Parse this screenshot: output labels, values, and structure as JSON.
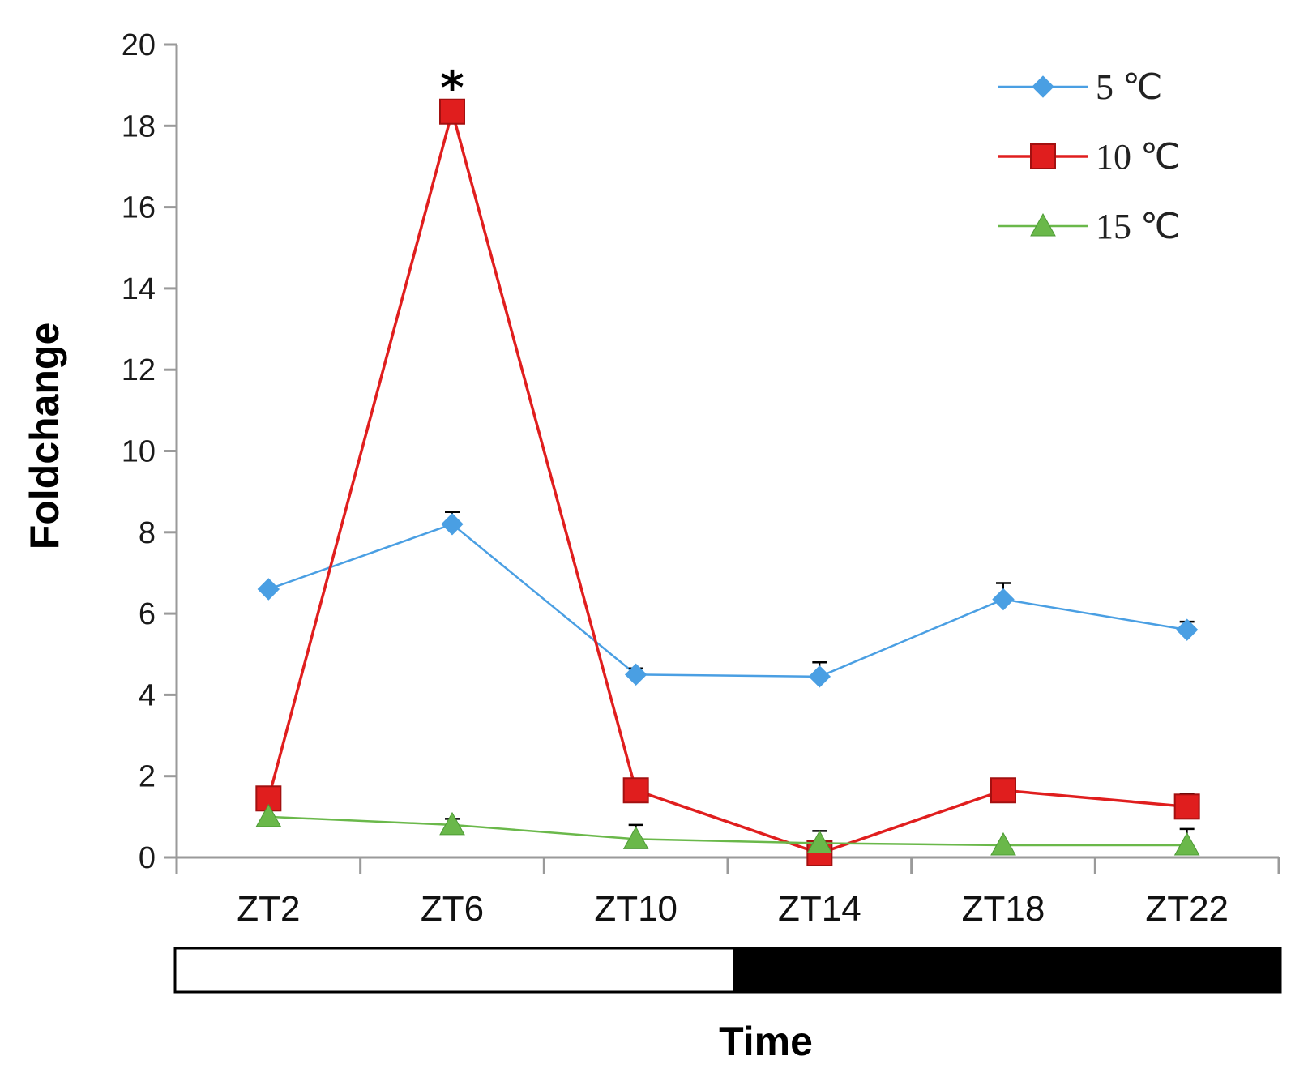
{
  "chart_data": {
    "type": "line",
    "xlabel": "Time",
    "ylabel": "Foldchange",
    "ylim": [
      0,
      20
    ],
    "yticks": [
      0,
      2,
      4,
      6,
      8,
      10,
      12,
      14,
      16,
      18,
      20
    ],
    "categories": [
      "ZT2",
      "ZT6",
      "ZT10",
      "ZT14",
      "ZT18",
      "ZT22"
    ],
    "legend_position": "top-right",
    "series": [
      {
        "name": "5 ℃",
        "color": "#4a9fe3",
        "marker": "diamond",
        "values": [
          6.6,
          8.2,
          4.5,
          4.45,
          6.35,
          5.6
        ],
        "errors": [
          0,
          0.3,
          0.15,
          0.35,
          0.4,
          0.2
        ]
      },
      {
        "name": "10 ℃",
        "color": "#e01e1e",
        "marker": "square",
        "values": [
          1.45,
          18.35,
          1.65,
          0.1,
          1.65,
          1.25
        ],
        "errors": [
          0,
          0,
          0.25,
          0,
          0,
          0.3
        ]
      },
      {
        "name": "15 ℃",
        "color": "#6ab84a",
        "marker": "triangle",
        "values": [
          1.0,
          0.8,
          0.45,
          0.35,
          0.3,
          0.3
        ],
        "errors": [
          0,
          0.15,
          0.35,
          0.3,
          0,
          0.4
        ]
      }
    ],
    "annotations": [
      {
        "text": "*",
        "category": "ZT6",
        "series": "10 ℃"
      }
    ],
    "light_dark_bar": [
      {
        "phase": "light",
        "color": "#ffffff",
        "from": 0,
        "to": 0.505
      },
      {
        "phase": "dark",
        "color": "#000000",
        "from": 0.505,
        "to": 1
      }
    ]
  }
}
